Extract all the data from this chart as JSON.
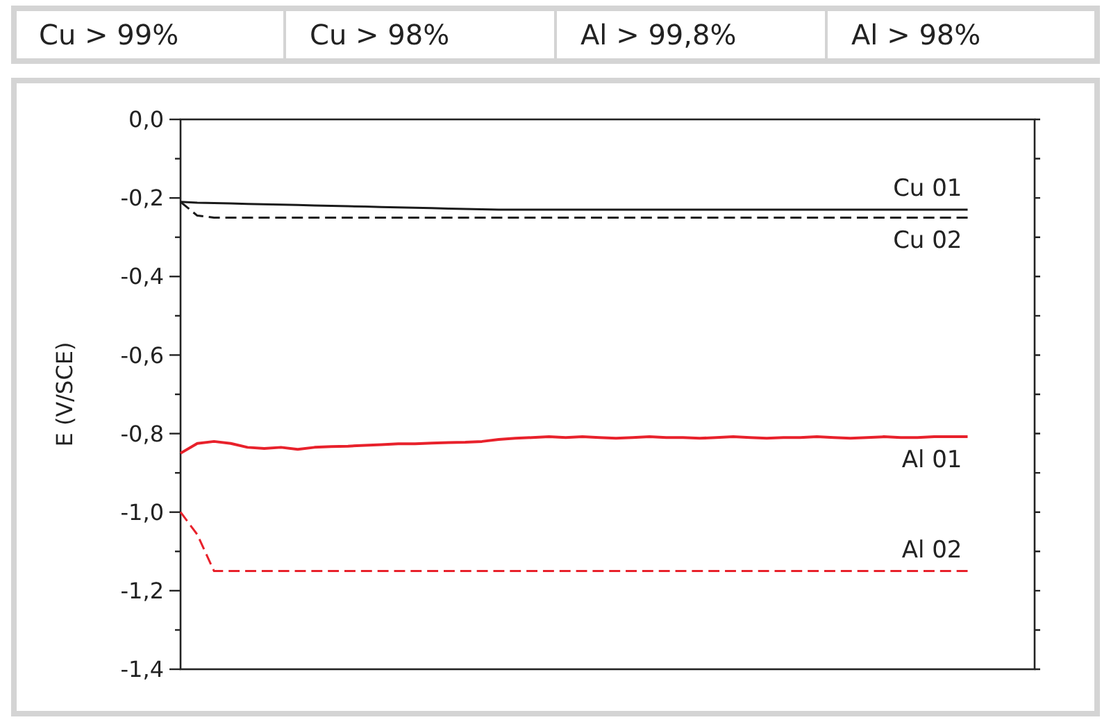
{
  "chart_data": {
    "type": "line",
    "ylabel": "E (V/SCE)",
    "annotations": [
      "Cu > 99%",
      "Cu > 98%",
      "Al > 99,8%",
      "Al > 98%"
    ],
    "categories": [
      null,
      null,
      null,
      null,
      null,
      null,
      null,
      null,
      null,
      null,
      null,
      null,
      null,
      null,
      null,
      null,
      null,
      null,
      null,
      null,
      null,
      null,
      null,
      null,
      null,
      null,
      null,
      null,
      null,
      null,
      null,
      null,
      null,
      null,
      null,
      null,
      null,
      null,
      null,
      null,
      null,
      null,
      null,
      null,
      null,
      null,
      null,
      null,
      null,
      null,
      null,
      null
    ],
    "ylim": [
      -1.4,
      0
    ],
    "yticks": [
      {
        "value": 0,
        "label": "0,0"
      },
      {
        "value": -0.1,
        "label": null
      },
      {
        "value": -0.2,
        "label": "-0,2"
      },
      {
        "value": -0.3,
        "label": null
      },
      {
        "value": -0.4,
        "label": "-0,4"
      },
      {
        "value": -0.5,
        "label": null
      },
      {
        "value": -0.6,
        "label": "-0,6"
      },
      {
        "value": -0.7,
        "label": null
      },
      {
        "value": -0.8,
        "label": "-0,8"
      },
      {
        "value": -0.9,
        "label": null
      },
      {
        "value": -1.0,
        "label": "-1,0"
      },
      {
        "value": -1.1,
        "label": null
      },
      {
        "value": -1.2,
        "label": "-1,2"
      },
      {
        "value": -1.3,
        "label": null
      },
      {
        "value": -1.4,
        "label": "-1,4"
      }
    ],
    "series": [
      {
        "name": "Cu 01",
        "color": "#1a1a1a",
        "line_style": "solid",
        "values": [
          -0.21,
          -0.212,
          -0.213,
          -0.214,
          -0.215,
          -0.216,
          -0.217,
          -0.218,
          -0.219,
          -0.22,
          -0.221,
          -0.222,
          -0.223,
          -0.224,
          -0.225,
          -0.226,
          -0.227,
          -0.228,
          -0.229,
          -0.23,
          -0.23,
          -0.23,
          -0.23,
          -0.23,
          -0.23,
          -0.23,
          -0.23,
          -0.23,
          -0.23,
          -0.23,
          -0.23,
          -0.23,
          -0.23,
          -0.23,
          -0.23,
          -0.23,
          -0.23,
          -0.23,
          -0.23,
          -0.23,
          -0.23,
          -0.23,
          -0.23,
          -0.23,
          -0.23,
          -0.23,
          -0.23,
          -0.23,
          null,
          null,
          null,
          null
        ]
      },
      {
        "name": "Cu 02",
        "color": "#1a1a1a",
        "line_style": "dashed",
        "values": [
          -0.21,
          -0.245,
          -0.25,
          -0.25,
          -0.25,
          -0.25,
          -0.25,
          -0.25,
          -0.25,
          -0.25,
          -0.25,
          -0.25,
          -0.25,
          -0.25,
          -0.25,
          -0.25,
          -0.25,
          -0.25,
          -0.25,
          -0.25,
          -0.25,
          -0.25,
          -0.25,
          -0.25,
          -0.25,
          -0.25,
          -0.25,
          -0.25,
          -0.25,
          -0.25,
          -0.25,
          -0.25,
          -0.25,
          -0.25,
          -0.25,
          -0.25,
          -0.25,
          -0.25,
          -0.25,
          -0.25,
          -0.25,
          -0.25,
          -0.25,
          -0.25,
          -0.25,
          -0.25,
          -0.25,
          -0.25,
          null,
          null,
          null,
          null
        ]
      },
      {
        "name": "Al 01",
        "color": "#e8212b",
        "line_style": "solid",
        "values": [
          -0.85,
          -0.825,
          -0.82,
          -0.825,
          -0.835,
          -0.838,
          -0.835,
          -0.84,
          -0.835,
          -0.833,
          -0.832,
          -0.83,
          -0.828,
          -0.826,
          -0.826,
          -0.824,
          -0.823,
          -0.822,
          -0.82,
          -0.815,
          -0.812,
          -0.81,
          -0.808,
          -0.81,
          -0.808,
          -0.81,
          -0.812,
          -0.81,
          -0.808,
          -0.81,
          -0.81,
          -0.812,
          -0.81,
          -0.808,
          -0.81,
          -0.812,
          -0.81,
          -0.81,
          -0.808,
          -0.81,
          -0.812,
          -0.81,
          -0.808,
          -0.81,
          -0.81,
          -0.808,
          -0.808,
          -0.808,
          null,
          null,
          null,
          null
        ]
      },
      {
        "name": "Al 02",
        "color": "#e8212b",
        "line_style": "dashed",
        "values": [
          -1.0,
          -1.057,
          -1.15,
          -1.15,
          -1.15,
          -1.15,
          -1.15,
          -1.15,
          -1.15,
          -1.15,
          -1.15,
          -1.15,
          -1.15,
          -1.15,
          -1.15,
          -1.15,
          -1.15,
          -1.15,
          -1.15,
          -1.15,
          -1.15,
          -1.15,
          -1.15,
          -1.15,
          -1.15,
          -1.15,
          -1.15,
          -1.15,
          -1.15,
          -1.15,
          -1.15,
          -1.15,
          -1.15,
          -1.15,
          -1.15,
          -1.15,
          -1.15,
          -1.15,
          -1.15,
          -1.15,
          -1.15,
          -1.15,
          -1.15,
          -1.15,
          -1.15,
          -1.15,
          -1.15,
          -1.15,
          null,
          null,
          null,
          null
        ]
      }
    ]
  }
}
